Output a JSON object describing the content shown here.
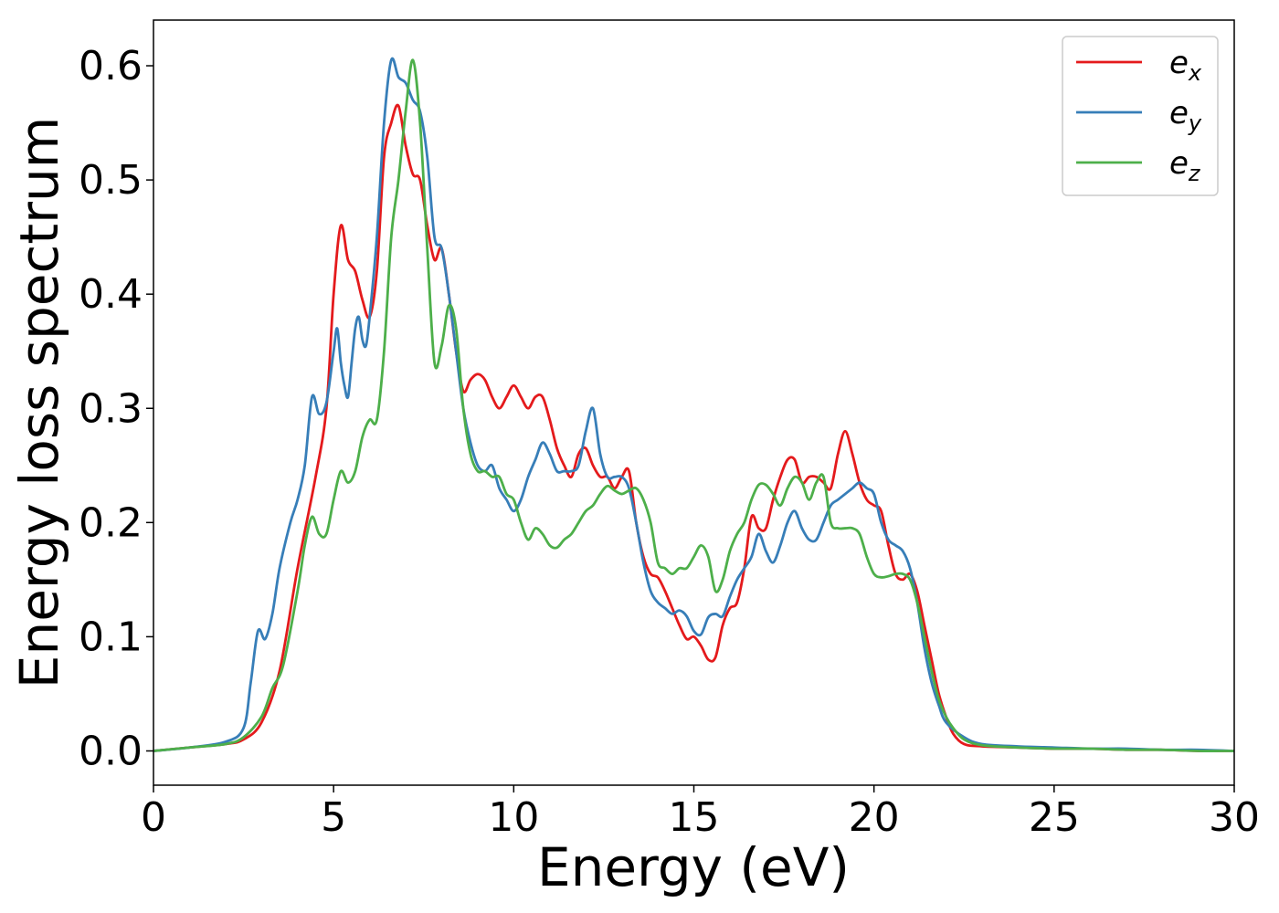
{
  "chart_data": {
    "type": "line",
    "xlabel": "Energy (eV)",
    "ylabel": "Energy loss spectrum",
    "xlim": [
      0,
      30
    ],
    "ylim": [
      -0.03,
      0.64
    ],
    "xticks": [
      0,
      5,
      10,
      15,
      20,
      25,
      30
    ],
    "yticks": [
      0.0,
      0.1,
      0.2,
      0.3,
      0.4,
      0.5,
      0.6
    ],
    "grid": false,
    "legend_position": "top-right",
    "series": [
      {
        "name": "e",
        "sub": "x",
        "color": "#e41a1c",
        "x": [
          0,
          1,
          2,
          2.5,
          3,
          3.5,
          4,
          4.5,
          4.8,
          5.0,
          5.2,
          5.4,
          5.6,
          5.8,
          6.0,
          6.2,
          6.4,
          6.6,
          6.8,
          7.0,
          7.2,
          7.4,
          7.6,
          7.8,
          8.0,
          8.2,
          8.4,
          8.6,
          8.8,
          9.0,
          9.2,
          9.4,
          9.6,
          9.8,
          10.0,
          10.2,
          10.4,
          10.6,
          10.8,
          11.0,
          11.2,
          11.4,
          11.6,
          11.8,
          12.0,
          12.2,
          12.4,
          12.6,
          12.8,
          13.0,
          13.2,
          13.4,
          13.6,
          13.8,
          14.0,
          14.2,
          14.4,
          14.6,
          14.8,
          15.0,
          15.2,
          15.4,
          15.6,
          15.8,
          16.0,
          16.2,
          16.4,
          16.6,
          16.8,
          17.0,
          17.2,
          17.4,
          17.6,
          17.8,
          18.0,
          18.2,
          18.4,
          18.6,
          18.8,
          19.0,
          19.2,
          19.4,
          19.6,
          19.8,
          20.0,
          20.2,
          20.4,
          20.6,
          20.8,
          21.0,
          21.2,
          21.4,
          21.6,
          21.8,
          22.0,
          22.2,
          22.5,
          23,
          24,
          25,
          26,
          27,
          28,
          29,
          30
        ],
        "values": [
          0.0,
          0.003,
          0.006,
          0.01,
          0.025,
          0.07,
          0.16,
          0.24,
          0.3,
          0.4,
          0.46,
          0.43,
          0.42,
          0.395,
          0.38,
          0.42,
          0.52,
          0.55,
          0.565,
          0.53,
          0.505,
          0.5,
          0.46,
          0.43,
          0.44,
          0.4,
          0.35,
          0.315,
          0.325,
          0.33,
          0.325,
          0.31,
          0.3,
          0.31,
          0.32,
          0.31,
          0.3,
          0.31,
          0.31,
          0.29,
          0.265,
          0.25,
          0.24,
          0.26,
          0.265,
          0.25,
          0.24,
          0.24,
          0.23,
          0.24,
          0.245,
          0.2,
          0.17,
          0.155,
          0.152,
          0.14,
          0.125,
          0.11,
          0.098,
          0.1,
          0.092,
          0.08,
          0.082,
          0.11,
          0.125,
          0.13,
          0.16,
          0.205,
          0.195,
          0.195,
          0.22,
          0.24,
          0.255,
          0.255,
          0.235,
          0.24,
          0.24,
          0.235,
          0.23,
          0.26,
          0.28,
          0.26,
          0.235,
          0.22,
          0.215,
          0.21,
          0.18,
          0.155,
          0.15,
          0.155,
          0.14,
          0.11,
          0.08,
          0.05,
          0.03,
          0.015,
          0.006,
          0.004,
          0.003,
          0.002,
          0.002,
          0.001,
          0.001,
          0.0,
          0.0
        ],
        "hidden_note": ""
      },
      {
        "name": "e",
        "sub": "y",
        "color": "#377eb8",
        "x": [
          0,
          1,
          2,
          2.5,
          2.7,
          2.9,
          3.1,
          3.3,
          3.5,
          3.8,
          4.0,
          4.2,
          4.4,
          4.6,
          4.8,
          5.0,
          5.1,
          5.2,
          5.3,
          5.4,
          5.5,
          5.6,
          5.7,
          5.8,
          5.9,
          6.0,
          6.2,
          6.4,
          6.6,
          6.8,
          7.0,
          7.2,
          7.4,
          7.6,
          7.8,
          8.0,
          8.2,
          8.4,
          8.6,
          8.8,
          9.0,
          9.2,
          9.4,
          9.6,
          9.8,
          10.0,
          10.2,
          10.4,
          10.6,
          10.8,
          11.0,
          11.2,
          11.4,
          11.6,
          11.8,
          12.0,
          12.2,
          12.4,
          12.6,
          12.8,
          13.0,
          13.2,
          13.4,
          13.6,
          13.8,
          14.0,
          14.2,
          14.4,
          14.6,
          14.8,
          15.0,
          15.2,
          15.4,
          15.6,
          15.8,
          16.0,
          16.2,
          16.4,
          16.6,
          16.8,
          17.0,
          17.2,
          17.4,
          17.6,
          17.8,
          18.0,
          18.2,
          18.4,
          18.6,
          18.8,
          19.0,
          19.2,
          19.4,
          19.6,
          19.8,
          20.0,
          20.2,
          20.4,
          20.6,
          20.8,
          21.0,
          21.2,
          21.4,
          21.6,
          21.8,
          22.0,
          22.5,
          23,
          24,
          25,
          26,
          27,
          28,
          29,
          30
        ],
        "values": [
          0.0,
          0.003,
          0.008,
          0.02,
          0.06,
          0.105,
          0.098,
          0.12,
          0.16,
          0.2,
          0.22,
          0.25,
          0.31,
          0.295,
          0.305,
          0.35,
          0.37,
          0.34,
          0.32,
          0.31,
          0.34,
          0.37,
          0.38,
          0.36,
          0.355,
          0.38,
          0.45,
          0.55,
          0.605,
          0.59,
          0.585,
          0.57,
          0.56,
          0.52,
          0.45,
          0.44,
          0.4,
          0.35,
          0.3,
          0.27,
          0.25,
          0.245,
          0.25,
          0.23,
          0.22,
          0.21,
          0.22,
          0.24,
          0.255,
          0.27,
          0.26,
          0.245,
          0.245,
          0.245,
          0.25,
          0.28,
          0.3,
          0.26,
          0.24,
          0.24,
          0.24,
          0.23,
          0.2,
          0.165,
          0.14,
          0.13,
          0.125,
          0.12,
          0.123,
          0.118,
          0.105,
          0.102,
          0.117,
          0.12,
          0.118,
          0.135,
          0.15,
          0.16,
          0.17,
          0.19,
          0.175,
          0.165,
          0.18,
          0.2,
          0.21,
          0.195,
          0.185,
          0.185,
          0.2,
          0.215,
          0.22,
          0.225,
          0.23,
          0.235,
          0.23,
          0.225,
          0.2,
          0.185,
          0.18,
          0.175,
          0.16,
          0.13,
          0.09,
          0.06,
          0.04,
          0.025,
          0.012,
          0.006,
          0.004,
          0.003,
          0.002,
          0.002,
          0.001,
          0.001,
          0.0
        ]
      },
      {
        "name": "e",
        "sub": "z",
        "color": "#4daf4a",
        "x": [
          0,
          1,
          2,
          2.5,
          3,
          3.3,
          3.6,
          4.0,
          4.2,
          4.4,
          4.6,
          4.8,
          5.0,
          5.2,
          5.4,
          5.6,
          5.8,
          6.0,
          6.2,
          6.4,
          6.6,
          6.8,
          7.0,
          7.2,
          7.4,
          7.6,
          7.8,
          8.0,
          8.2,
          8.4,
          8.6,
          8.8,
          9.0,
          9.2,
          9.4,
          9.6,
          9.8,
          10.0,
          10.2,
          10.4,
          10.6,
          10.8,
          11.0,
          11.2,
          11.4,
          11.6,
          11.8,
          12.0,
          12.2,
          12.4,
          12.6,
          12.8,
          13.0,
          13.2,
          13.4,
          13.6,
          13.8,
          14.0,
          14.2,
          14.4,
          14.6,
          14.8,
          15.0,
          15.2,
          15.4,
          15.6,
          15.8,
          16.0,
          16.2,
          16.4,
          16.6,
          16.8,
          17.0,
          17.2,
          17.4,
          17.6,
          17.8,
          18.0,
          18.2,
          18.4,
          18.6,
          18.8,
          19.0,
          19.2,
          19.4,
          19.6,
          19.8,
          20.0,
          20.2,
          20.4,
          20.6,
          20.8,
          21.0,
          21.2,
          21.4,
          21.6,
          21.8,
          22.0,
          22.2,
          22.5,
          23,
          24,
          25,
          26,
          27,
          28,
          29,
          30
        ],
        "values": [
          0.0,
          0.003,
          0.006,
          0.012,
          0.03,
          0.055,
          0.075,
          0.14,
          0.18,
          0.205,
          0.19,
          0.19,
          0.22,
          0.245,
          0.235,
          0.245,
          0.275,
          0.29,
          0.29,
          0.35,
          0.45,
          0.5,
          0.56,
          0.605,
          0.55,
          0.44,
          0.34,
          0.355,
          0.39,
          0.37,
          0.3,
          0.26,
          0.245,
          0.245,
          0.24,
          0.24,
          0.225,
          0.22,
          0.2,
          0.185,
          0.195,
          0.19,
          0.18,
          0.178,
          0.185,
          0.19,
          0.2,
          0.21,
          0.215,
          0.225,
          0.232,
          0.228,
          0.225,
          0.228,
          0.23,
          0.22,
          0.2,
          0.165,
          0.16,
          0.155,
          0.16,
          0.16,
          0.17,
          0.18,
          0.17,
          0.14,
          0.15,
          0.175,
          0.19,
          0.2,
          0.22,
          0.233,
          0.233,
          0.225,
          0.215,
          0.23,
          0.24,
          0.235,
          0.22,
          0.235,
          0.24,
          0.2,
          0.195,
          0.195,
          0.195,
          0.19,
          0.17,
          0.155,
          0.152,
          0.153,
          0.155,
          0.155,
          0.15,
          0.13,
          0.1,
          0.07,
          0.045,
          0.03,
          0.02,
          0.01,
          0.005,
          0.003,
          0.002,
          0.002,
          0.001,
          0.001,
          0.0,
          0.0
        ]
      }
    ]
  }
}
